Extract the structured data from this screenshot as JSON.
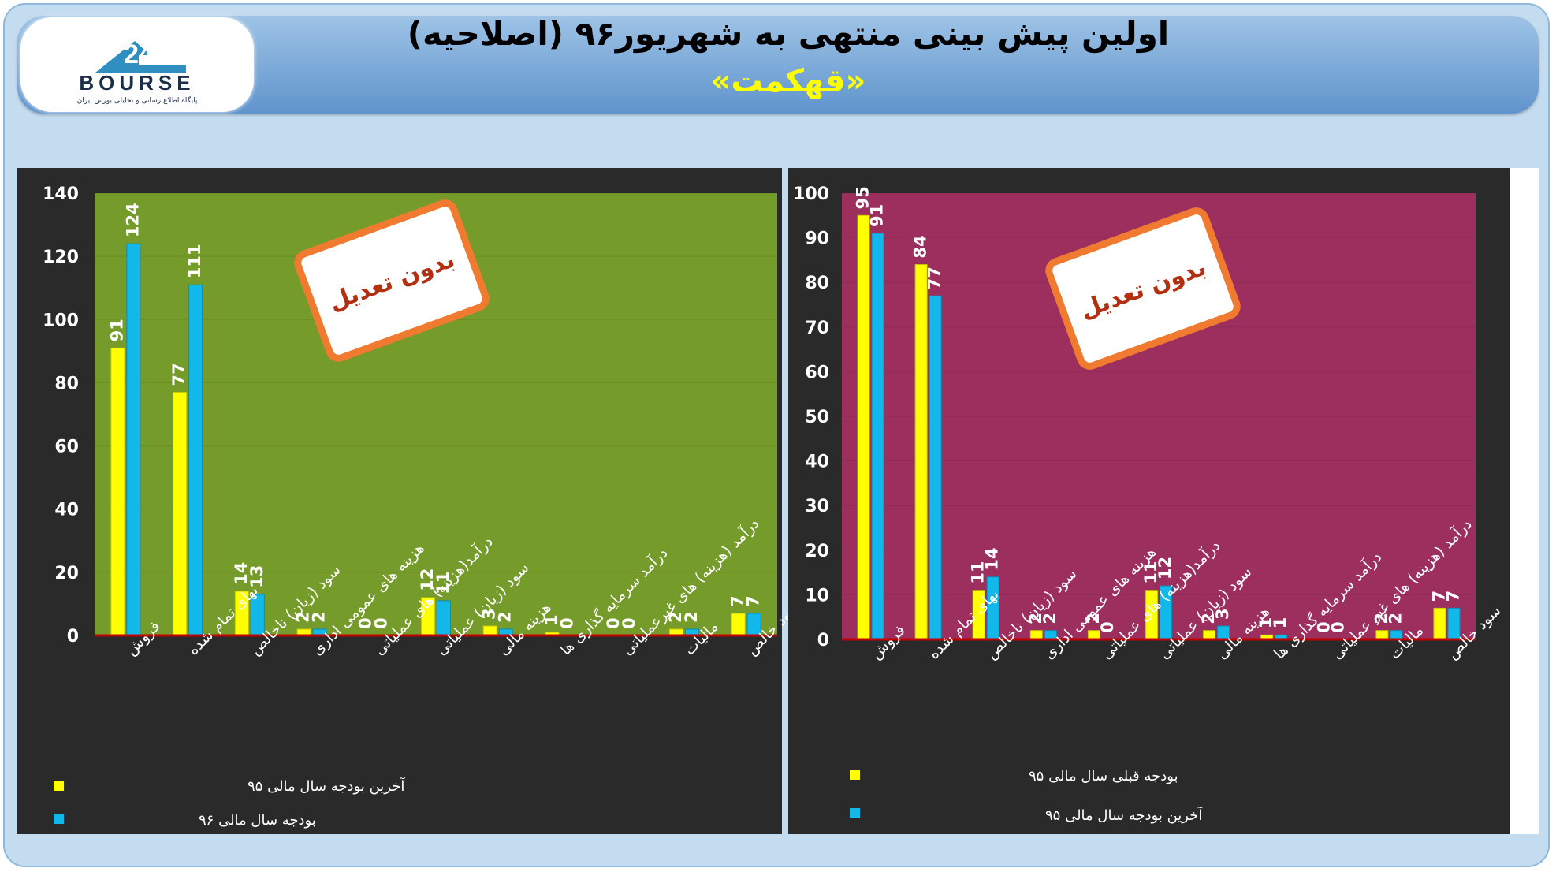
{
  "header": {
    "title": "اولین پیش بینی منتهی به شهریور۹۶ (اصلاحیه)",
    "subtitle": "«قهکمت»"
  },
  "logo": {
    "text": "BOURSE",
    "number": "24",
    "tagline": "پایگاه اطلاع رسانی و تحلیلی بورس ایران"
  },
  "colors": {
    "series_yellow": "#ffff00",
    "series_blue": "#13b8ea",
    "left_plot_bg": "#759b2a",
    "right_plot_bg": "#9c2f5d",
    "chart_bg": "#2a2a2a",
    "badge_border": "#f07a30",
    "badge_text": "#b22f10",
    "baseline": "#c00000"
  },
  "chart_data": [
    {
      "type": "bar",
      "categories": [
        "فروش",
        "بهای تمام شده",
        "سود (زیان) ناخالص",
        "هزینه های عمومی اداری",
        "درآمد(هزینه) های عملیاتی",
        "سود (زیان) عملیاتی",
        "هزینه مالی",
        "درآمد سرمایه گذاری ها",
        "درآمد (هزینه) های غیرعملیاتی",
        "مالیات",
        "سود خالص"
      ],
      "series": [
        {
          "name": "آخرین بودجه سال مالی ۹۵",
          "values": [
            91,
            77,
            14,
            2,
            0,
            12,
            3,
            1,
            0,
            2,
            7
          ],
          "color": "#ffff00"
        },
        {
          "name": "بودجه سال مالی ۹۶",
          "values": [
            124,
            111,
            13,
            2,
            0,
            11,
            2,
            0,
            0,
            2,
            7
          ],
          "color": "#13b8ea"
        }
      ],
      "yticks": [
        "0",
        "20",
        "40",
        "60",
        "80",
        "100",
        "120",
        "140"
      ],
      "ylim": [
        0,
        140
      ],
      "badge": "بدون تعدیل",
      "legend_position": "bottom-left"
    },
    {
      "type": "bar",
      "categories": [
        "فروش",
        "بهای تمام شده",
        "سود (زیان) ناخالص",
        "هزینه های عمومی اداری",
        "درآمد(هزینه) های عملیاتی",
        "سود (زیان) عملیاتی",
        "هزینه مالی",
        "درآمد سرمایه گذاری ها",
        "درآمد (هزینه) های غیر عملیاتی",
        "مالیات",
        "سود خالص"
      ],
      "series": [
        {
          "name": "بودجه قبلی سال مالی ۹۵",
          "values": [
            95,
            84,
            11,
            2,
            2,
            11,
            2,
            1,
            0,
            2,
            7
          ],
          "color": "#ffff00"
        },
        {
          "name": "آخرین بودجه سال مالی ۹۵",
          "values": [
            91,
            77,
            14,
            2,
            0,
            12,
            3,
            1,
            0,
            2,
            7
          ],
          "color": "#13b8ea"
        }
      ],
      "yticks": [
        "0",
        "10",
        "20",
        "30",
        "40",
        "50",
        "60",
        "70",
        "80",
        "90",
        "100"
      ],
      "ylim": [
        0,
        100
      ],
      "badge": "بدون تعدیل",
      "legend_position": "bottom-left"
    }
  ]
}
